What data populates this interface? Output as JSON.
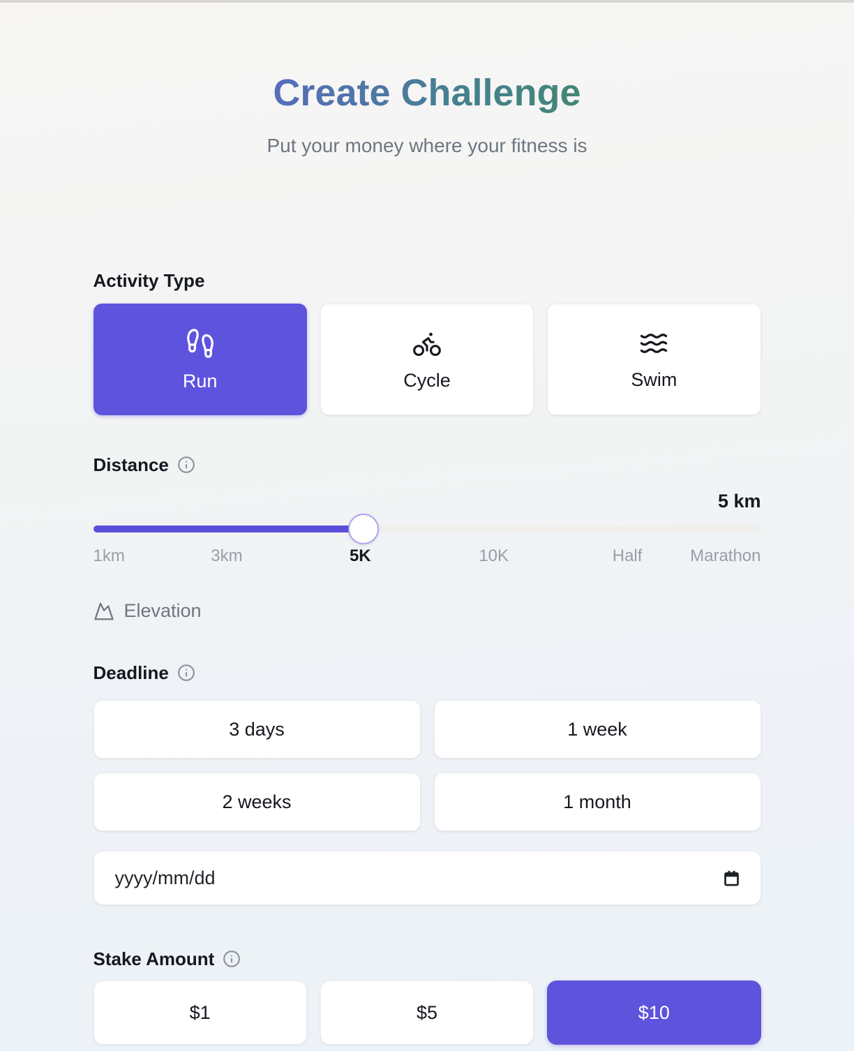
{
  "header": {
    "title": "Create Challenge",
    "subtitle": "Put your money where your fitness is"
  },
  "activity": {
    "label": "Activity Type",
    "options": [
      {
        "label": "Run",
        "icon": "footprints-icon",
        "selected": true
      },
      {
        "label": "Cycle",
        "icon": "bike-icon",
        "selected": false
      },
      {
        "label": "Swim",
        "icon": "waves-icon",
        "selected": false
      }
    ]
  },
  "distance": {
    "label": "Distance",
    "value": "5 km",
    "slider_percent": 40.5,
    "ticks": [
      {
        "label": "1km",
        "active": false
      },
      {
        "label": "3km",
        "active": false
      },
      {
        "label": "5K",
        "active": true
      },
      {
        "label": "10K",
        "active": false
      },
      {
        "label": "Half",
        "active": false
      },
      {
        "label": "Marathon",
        "active": false
      }
    ],
    "elevation_label": "Elevation"
  },
  "deadline": {
    "label": "Deadline",
    "options": [
      "3 days",
      "1 week",
      "2 weeks",
      "1 month"
    ],
    "date_placeholder": "yyyy/mm/dd"
  },
  "stake": {
    "label": "Stake Amount",
    "options": [
      {
        "label": "$1",
        "selected": false
      },
      {
        "label": "$5",
        "selected": false
      },
      {
        "label": "$10",
        "selected": true
      }
    ]
  },
  "colors": {
    "accent": "#5e53dc",
    "slider_fill": "#5b4fdb",
    "slider_rest": "#f1efec",
    "title_gradient_start": "#675ae6",
    "title_gradient_end": "#3f9150"
  }
}
